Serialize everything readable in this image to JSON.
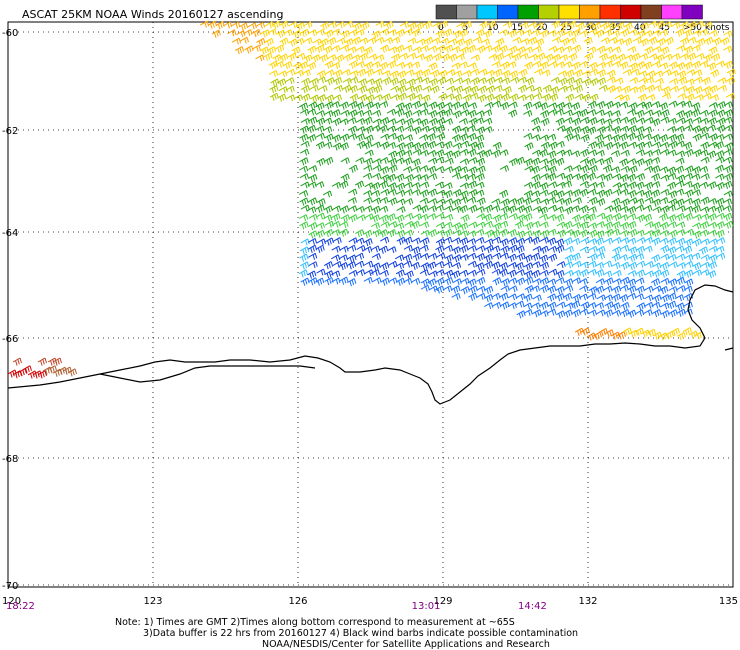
{
  "title": "ASCAT 25KM NOAA Winds 20160127 ascending",
  "colorbar": {
    "labels": [
      "0",
      "5",
      "10",
      "15",
      "20",
      "25",
      "30",
      "35",
      "40",
      "45",
      ">50 knots"
    ],
    "colors": [
      "#505050",
      "#a0a0a0",
      "#00c8ff",
      "#0064ff",
      "#00a000",
      "#b4d000",
      "#ffe000",
      "#ffa000",
      "#ff3000",
      "#d00000",
      "#804020",
      "#ff40ff",
      "#8000c0"
    ]
  },
  "axes": {
    "lat_labels": [
      "-60",
      "-62",
      "-64",
      "-66",
      "-68",
      "-70"
    ],
    "lon_labels": [
      "120",
      "123",
      "126",
      "129",
      "132",
      "135"
    ],
    "lat_values": [
      -60,
      -62,
      -64,
      -66,
      -68,
      -70
    ],
    "lon_values": [
      120,
      123,
      126,
      129,
      132,
      135
    ],
    "grid": "dotted"
  },
  "times": [
    {
      "label": "18:22",
      "lon": 120
    },
    {
      "label": "13:01",
      "lon": 128.6
    },
    {
      "label": "14:42",
      "lon": 130.8
    }
  ],
  "notes": {
    "line1": "Note: 1) Times are GMT 2)Times along bottom correspond to measurement at ~65S",
    "line2": "3)Data buffer is 22 hrs from 20160127 4) Black wind barbs indicate possible contamination",
    "line3": "NOAA/NESDIS/Center for Satellite Applications and Research"
  },
  "icons": {
    "wind_barb": "wind-barb-icon"
  }
}
